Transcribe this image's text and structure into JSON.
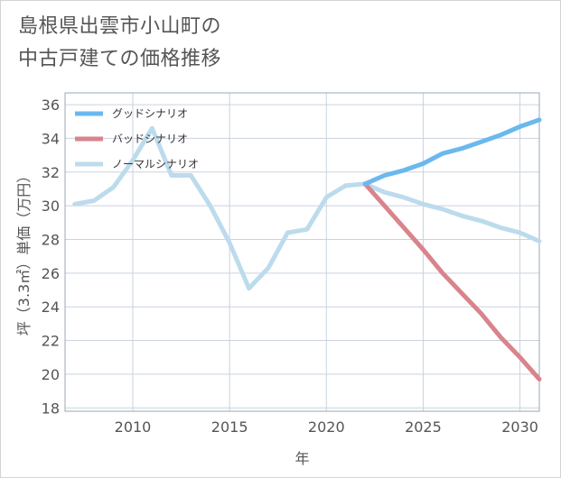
{
  "title": {
    "line1": "島根県出雲市小山町の",
    "line2": "中古戸建ての価格推移"
  },
  "chart_data": {
    "type": "line",
    "title": "島根県出雲市小山町の中古戸建ての価格推移",
    "xlabel": "年",
    "ylabel": "坪（3.3㎡）単価（万円）",
    "xlim": [
      2006.5,
      2031
    ],
    "ylim": [
      17.8,
      36.7
    ],
    "xticks": [
      2010,
      2015,
      2020,
      2025,
      2030
    ],
    "yticks": [
      18,
      20,
      22,
      24,
      26,
      28,
      30,
      32,
      34,
      36
    ],
    "grid": true,
    "legend_position": "top-left",
    "series": [
      {
        "name": "グッドシナリオ",
        "color": "#6bb8ee",
        "x": [
          2022,
          2023,
          2024,
          2025,
          2026,
          2027,
          2028,
          2029,
          2030,
          2031
        ],
        "y": [
          31.3,
          31.8,
          32.1,
          32.5,
          33.1,
          33.4,
          33.8,
          34.2,
          34.7,
          35.1
        ]
      },
      {
        "name": "バッドシナリオ",
        "color": "#d9848c",
        "x": [
          2022,
          2023,
          2024,
          2025,
          2026,
          2027,
          2028,
          2029,
          2030,
          2031
        ],
        "y": [
          31.3,
          30.0,
          28.7,
          27.4,
          26.0,
          24.8,
          23.6,
          22.2,
          21.0,
          19.7
        ]
      },
      {
        "name": "ノーマルシナリオ",
        "color": "#bcdbed",
        "x": [
          2007,
          2008,
          2009,
          2010,
          2011,
          2012,
          2013,
          2014,
          2015,
          2016,
          2017,
          2018,
          2019,
          2020,
          2021,
          2022,
          2023,
          2024,
          2025,
          2026,
          2027,
          2028,
          2029,
          2030,
          2031
        ],
        "y": [
          30.1,
          30.3,
          31.1,
          32.7,
          34.6,
          31.8,
          31.8,
          30.0,
          27.8,
          25.1,
          26.3,
          28.4,
          28.6,
          30.5,
          31.2,
          31.3,
          30.8,
          30.5,
          30.1,
          29.8,
          29.4,
          29.1,
          28.7,
          28.4,
          27.9
        ]
      }
    ]
  }
}
